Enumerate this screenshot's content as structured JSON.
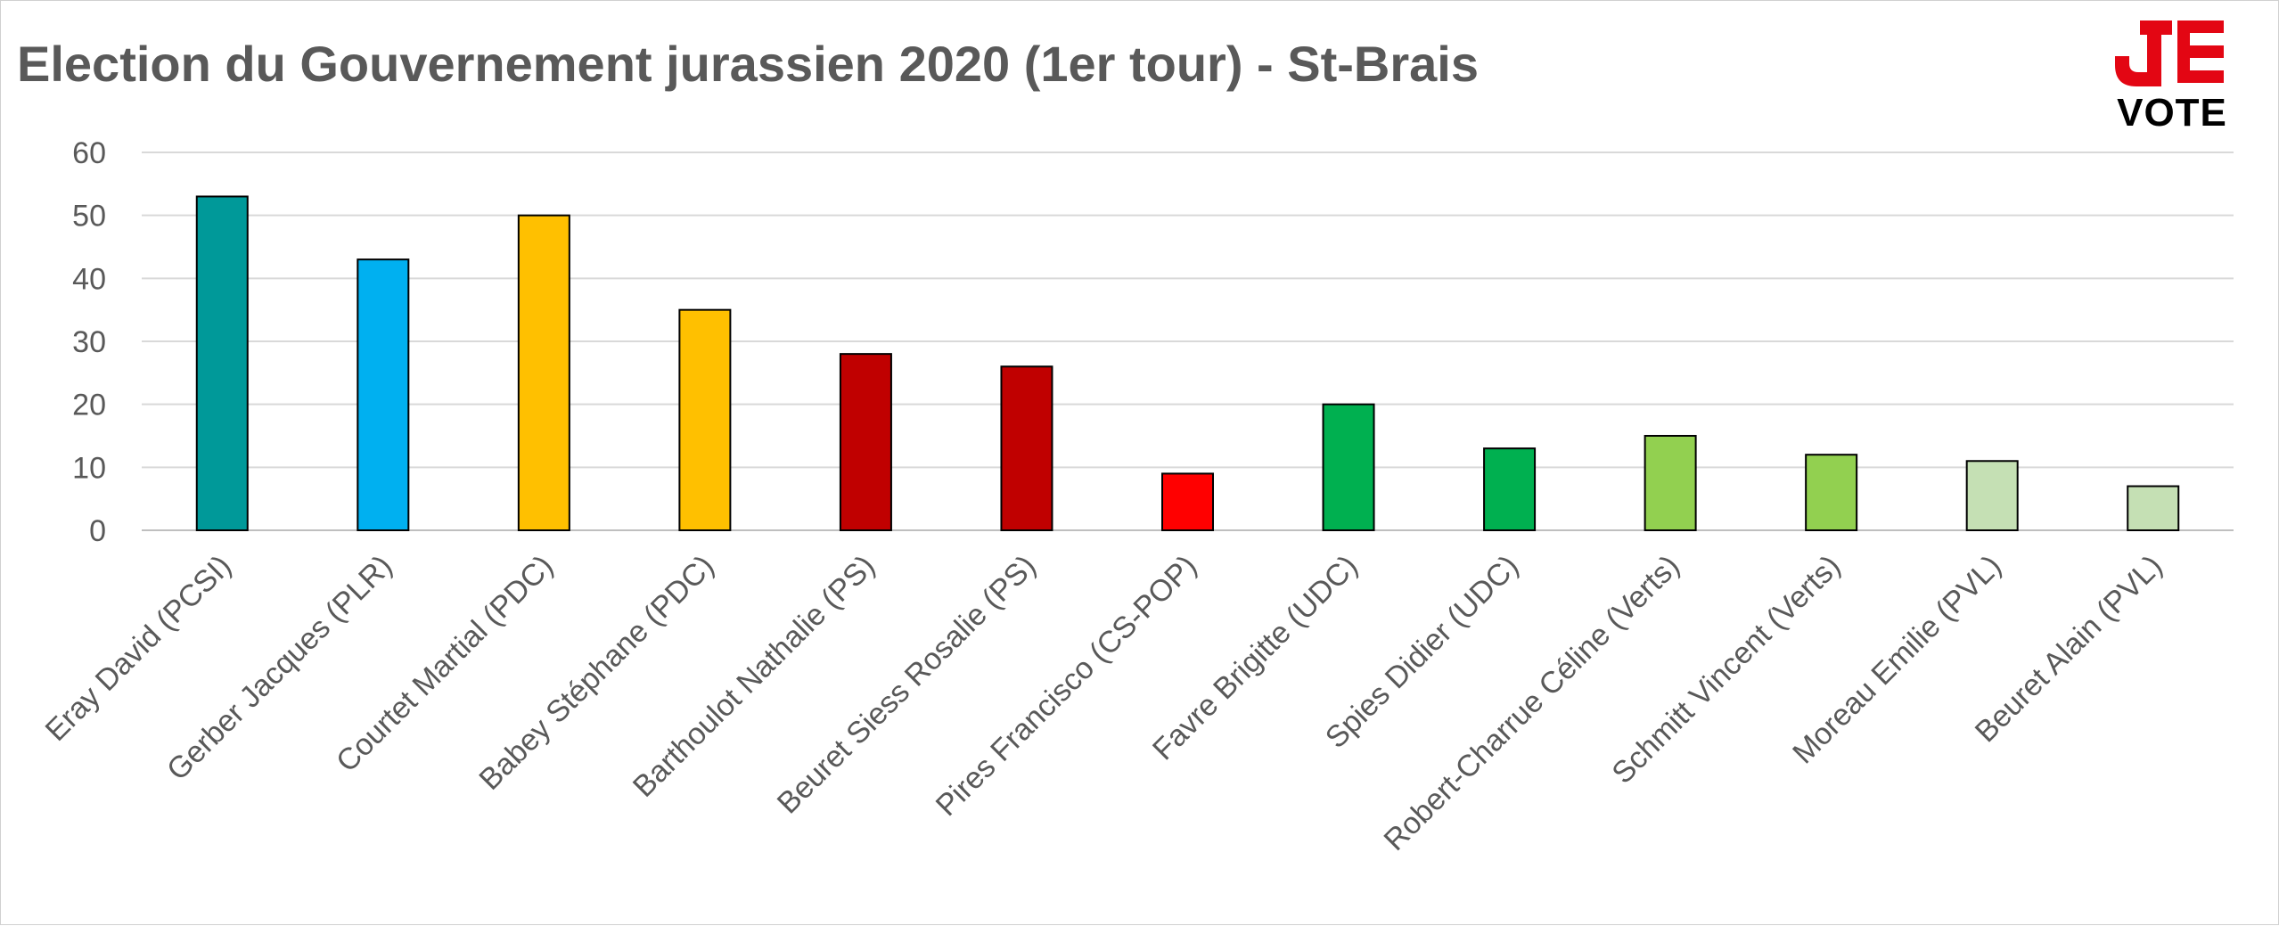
{
  "chart_data": {
    "type": "bar",
    "title": "Election du Gouvernement jurassien 2020 (1er tour) - St-Brais",
    "xlabel": "",
    "ylabel": "",
    "ylim": [
      0,
      60
    ],
    "yticks": [
      "0",
      "10",
      "20",
      "30",
      "40",
      "50",
      "60"
    ],
    "grid": true,
    "categories": [
      "Eray David (PCSI)",
      "Gerber Jacques (PLR)",
      "Courtet Martial (PDC)",
      "Babey Stéphane (PDC)",
      "Barthoulot Nathalie (PS)",
      "Beuret Siess Rosalie (PS)",
      "Pires Francisco (CS-POP)",
      "Favre Brigitte (UDC)",
      "Spies Didier (UDC)",
      "Robert-Charrue Céline (Verts)",
      "Schmitt Vincent (Verts)",
      "Moreau Emilie (PVL)",
      "Beuret Alain (PVL)"
    ],
    "values": [
      53,
      43,
      50,
      35,
      28,
      26,
      9,
      20,
      13,
      15,
      12,
      11,
      7
    ],
    "colors": [
      "#009999",
      "#00b0f0",
      "#ffc000",
      "#ffc000",
      "#c00000",
      "#c00000",
      "#ff0000",
      "#00b050",
      "#00b050",
      "#92d050",
      "#92d050",
      "#c5e0b4",
      "#c5e0b4"
    ]
  },
  "logo": {
    "word": "VOTE",
    "color": "#e30613"
  },
  "style": {
    "grid_color": "#d9d9d9",
    "axis_color": "#bfbfbf",
    "text_color": "#595959",
    "bar_outline": "#000000"
  }
}
